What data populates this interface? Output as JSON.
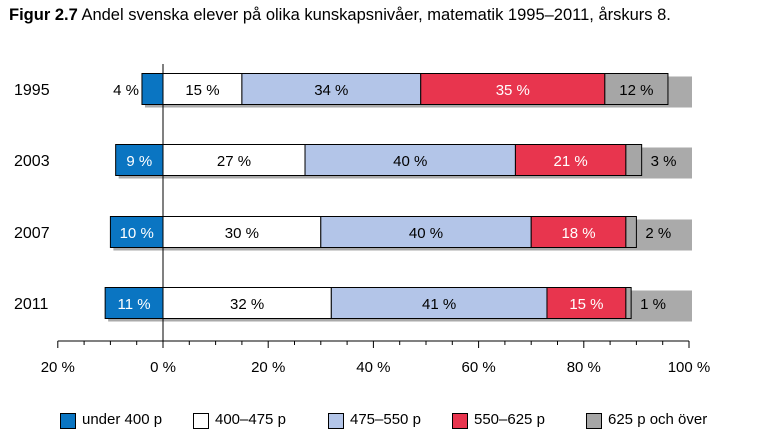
{
  "title": {
    "figure_number": "Figur 2.7",
    "text": "Andel svenska elever på olika kunskapsnivåer, matematik 1995–2011, årskurs 8."
  },
  "chart_data": {
    "type": "bar",
    "orientation": "horizontal",
    "stacked": true,
    "categories": [
      "1995",
      "2003",
      "2007",
      "2011"
    ],
    "series": [
      {
        "name": "under 400 p",
        "color": "#0a75c2",
        "values": [
          4,
          9,
          10,
          11
        ],
        "direction": "negative"
      },
      {
        "name": "400–475 p",
        "color": "#ffffff",
        "values": [
          15,
          27,
          30,
          32
        ]
      },
      {
        "name": "475–550 p",
        "color": "#b3c5e8",
        "values": [
          34,
          40,
          40,
          41
        ]
      },
      {
        "name": "550–625 p",
        "color": "#e8354e",
        "values": [
          35,
          21,
          18,
          15
        ]
      },
      {
        "name": "625 p och över",
        "color": "#a6a6a6",
        "values": [
          12,
          3,
          2,
          1
        ]
      }
    ],
    "value_labels": [
      [
        "4 %",
        "15 %",
        "34 %",
        "35 %",
        "12 %"
      ],
      [
        "9 %",
        "27 %",
        "40 %",
        "21 %",
        "3 %"
      ],
      [
        "10 %",
        "30 %",
        "40 %",
        "18 %",
        "2 %"
      ],
      [
        "11 %",
        "32 %",
        "41 %",
        "15 %",
        "1 %"
      ]
    ],
    "xlim": [
      -20,
      100
    ],
    "xticks": [
      -20,
      0,
      20,
      40,
      60,
      80,
      100
    ],
    "xtick_labels": [
      "20 %",
      "0 %",
      "20 %",
      "40 %",
      "60 %",
      "80 %",
      "100 %"
    ],
    "grid": false,
    "legend_position": "bottom"
  }
}
